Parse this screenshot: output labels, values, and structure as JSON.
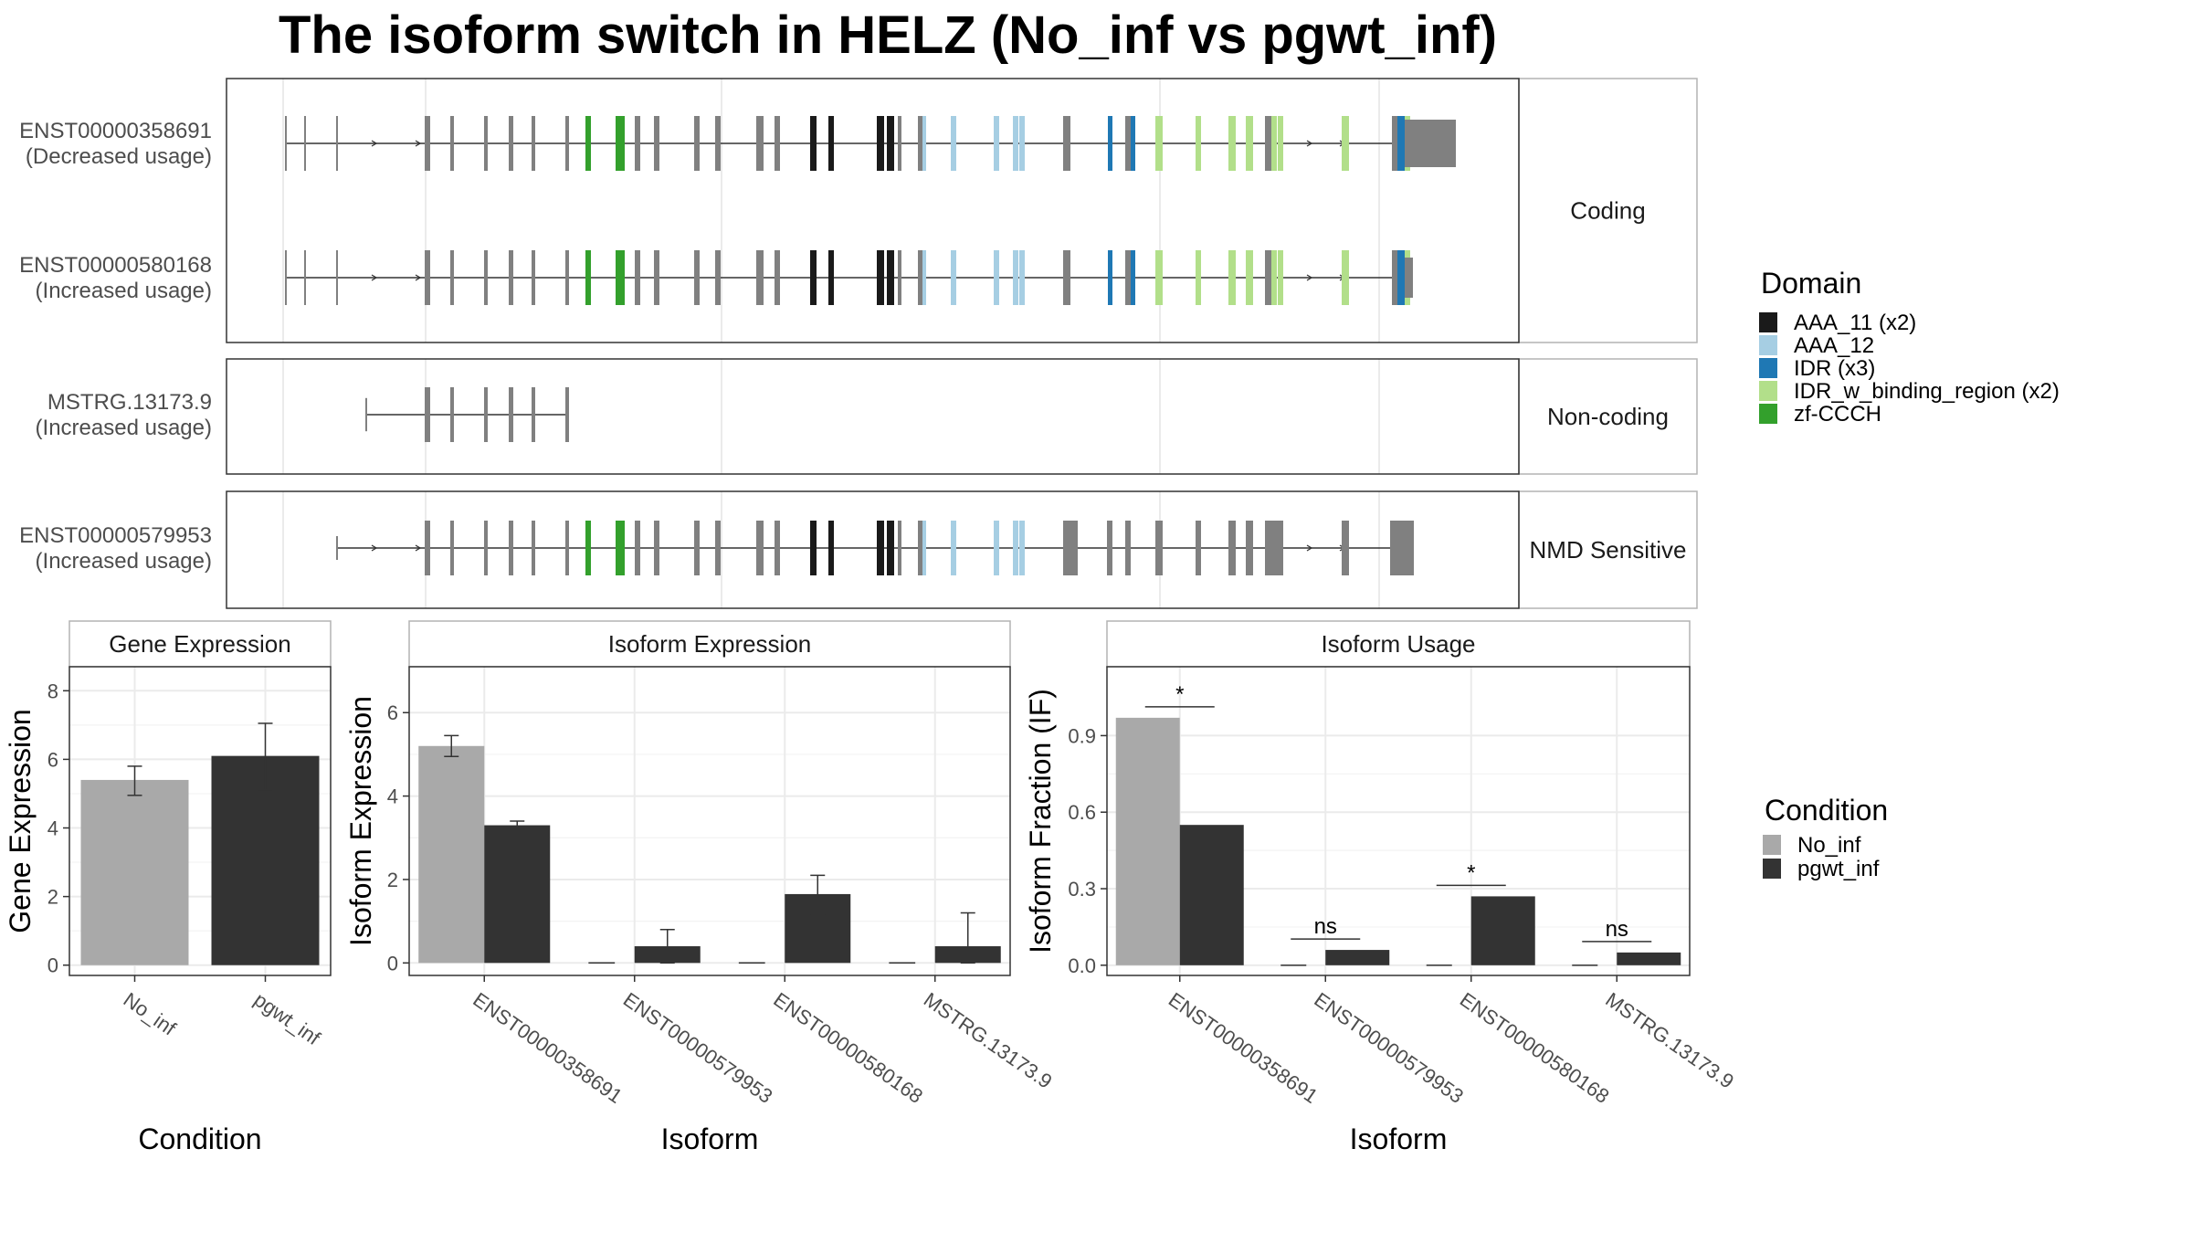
{
  "title": "The isoform switch in HELZ (No_inf vs pgwt_inf)",
  "colors": {
    "exon": "#808080",
    "AAA_11 (x2)": "#1a1a1a",
    "AAA_12": "#a6cee3",
    "IDR (x3)": "#1f78b4",
    "IDR_w_binding_region (x2)": "#b2df8a",
    "zf-CCCH": "#33a02c",
    "No_inf": "#a9a9a9",
    "pgwt_inf": "#333333"
  },
  "transcripts": {
    "groups": [
      {
        "label": "Coding",
        "rows": [
          {
            "id": "ENST00000358691",
            "usage": "(Decreased usage)"
          },
          {
            "id": "ENST00000580168",
            "usage": "(Increased usage)"
          }
        ]
      },
      {
        "label": "Non-coding",
        "rows": [
          {
            "id": "MSTRG.13173.9",
            "usage": "(Increased usage)"
          }
        ]
      },
      {
        "label": "NMD Sensitive",
        "rows": [
          {
            "id": "ENST00000579953",
            "usage": "(Increased usage)"
          }
        ]
      }
    ]
  },
  "domain_legend": {
    "title": "Domain",
    "items": [
      "AAA_11 (x2)",
      "AAA_12",
      "IDR (x3)",
      "IDR_w_binding_region (x2)",
      "zf-CCCH"
    ]
  },
  "condition_legend": {
    "title": "Condition",
    "items": [
      "No_inf",
      "pgwt_inf"
    ]
  },
  "chart_data": [
    {
      "type": "bar",
      "title": "Gene Expression",
      "xlabel": "Condition",
      "ylabel": "Gene Expression",
      "categories": [
        "No_inf",
        "pgwt_inf"
      ],
      "values": [
        5.4,
        6.1
      ],
      "error": [
        [
          4.95,
          5.8
        ],
        [
          5.1,
          7.05
        ]
      ],
      "ylim": [
        -0.3,
        8.7
      ],
      "yticks": [
        0,
        2,
        4,
        6,
        8
      ],
      "grid": true
    },
    {
      "type": "bar",
      "title": "Isoform Expression",
      "xlabel": "Isoform",
      "ylabel": "Isoform Expression",
      "categories": [
        "ENST00000358691",
        "ENST00000579953",
        "ENST00000580168",
        "MSTRG.13173.9"
      ],
      "series": [
        {
          "name": "No_inf",
          "values": [
            5.2,
            0,
            0,
            0
          ],
          "error": [
            [
              4.95,
              5.45
            ],
            null,
            null,
            null
          ]
        },
        {
          "name": "pgwt_inf",
          "values": [
            3.3,
            0.4,
            1.65,
            0.4
          ],
          "error": [
            [
              3.2,
              3.4
            ],
            [
              0.0,
              0.8
            ],
            [
              1.15,
              2.1
            ],
            [
              0.0,
              1.2
            ]
          ]
        }
      ],
      "ylim": [
        -0.3,
        7.1
      ],
      "yticks": [
        0,
        2,
        4,
        6
      ],
      "grid": true
    },
    {
      "type": "bar",
      "title": "Isoform Usage",
      "xlabel": "Isoform",
      "ylabel": "Isoform Fraction (IF)",
      "categories": [
        "ENST00000358691",
        "ENST00000579953",
        "ENST00000580168",
        "MSTRG.13173.9"
      ],
      "series": [
        {
          "name": "No_inf",
          "values": [
            0.97,
            0,
            0,
            0
          ]
        },
        {
          "name": "pgwt_inf",
          "values": [
            0.55,
            0.06,
            0.27,
            0.05
          ]
        }
      ],
      "significance": [
        "*",
        "ns",
        "*",
        "ns"
      ],
      "ylim": [
        -0.04,
        1.17
      ],
      "yticks": [
        0.0,
        0.3,
        0.6,
        0.9
      ],
      "yticklabels": [
        "0.0",
        "0.3",
        "0.6",
        "0.9"
      ],
      "grid": true
    }
  ]
}
